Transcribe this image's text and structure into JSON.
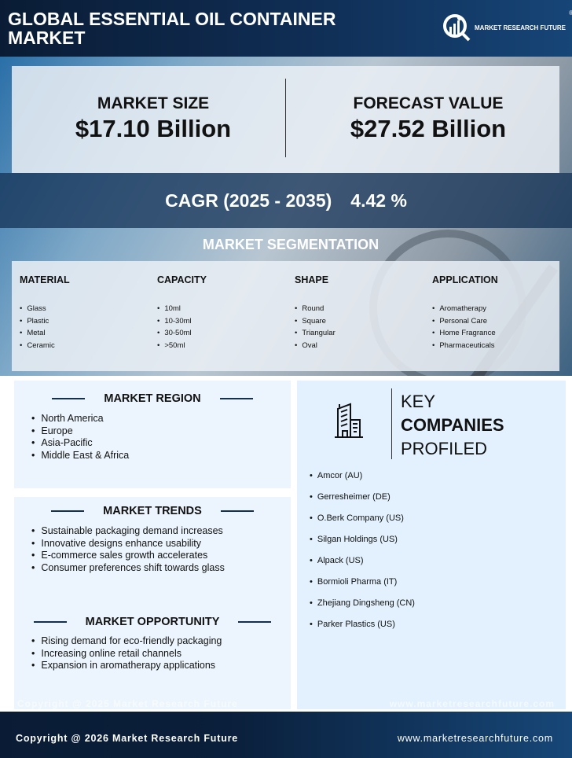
{
  "header": {
    "title": "GLOBAL ESSENTIAL OIL CONTAINER MARKET",
    "logo_text": "MARKET RESEARCH FUTURE",
    "logo_mark": "®"
  },
  "summary": {
    "market_size_label": "MARKET SIZE",
    "market_size_value": "$17.10 Billion",
    "forecast_label": "FORECAST VALUE",
    "forecast_value": "$27.52 Billion",
    "cagr_label": "CAGR (2025 - 2035)",
    "cagr_value": "4.42 %"
  },
  "segmentation": {
    "title": "MARKET SEGMENTATION",
    "columns": [
      {
        "heading": "MATERIAL",
        "items": [
          "Glass",
          "Plastic",
          "Metal",
          "Ceramic"
        ]
      },
      {
        "heading": "CAPACITY",
        "items": [
          "10ml",
          "10-30ml",
          "30-50ml",
          ">50ml"
        ]
      },
      {
        "heading": "SHAPE",
        "items": [
          "Round",
          "Square",
          "Triangular",
          "Oval"
        ]
      },
      {
        "heading": "APPLICATION",
        "items": [
          "Aromatherapy",
          "Personal Care",
          "Home Fragrance",
          "Pharmaceuticals"
        ]
      }
    ]
  },
  "region": {
    "title": "MARKET REGION",
    "items": [
      "North America",
      "Europe",
      "Asia-Pacific",
      "Middle East & Africa"
    ]
  },
  "trends": {
    "title": "MARKET TRENDS",
    "items": [
      "Sustainable packaging demand increases",
      "Innovative designs enhance usability",
      "E-commerce sales growth accelerates",
      "Consumer preferences shift towards glass"
    ]
  },
  "opportunity": {
    "title": "MARKET OPPORTUNITY",
    "items": [
      "Rising demand for eco-friendly packaging",
      "Increasing online retail channels",
      "Expansion in aromatherapy applications"
    ]
  },
  "companies": {
    "title_1": "KEY",
    "title_2": "COMPANIES",
    "title_3": "PROFILED",
    "items": [
      "Amcor (AU)",
      "Gerresheimer (DE)",
      "O.Berk Company (US)",
      "Silgan Holdings (US)",
      "Alpack (US)",
      "Bormioli Pharma (IT)",
      "Zhejiang Dingsheng (CN)",
      "Parker Plastics (US)"
    ]
  },
  "ghost": {
    "copyright": "Copyright @ 2025 Market Research Future",
    "website": "www.marketresearchfuture.com"
  },
  "footer": {
    "copyright": "Copyright @ 2026 Market Research Future",
    "website": "www.marketresearchfuture.com"
  }
}
